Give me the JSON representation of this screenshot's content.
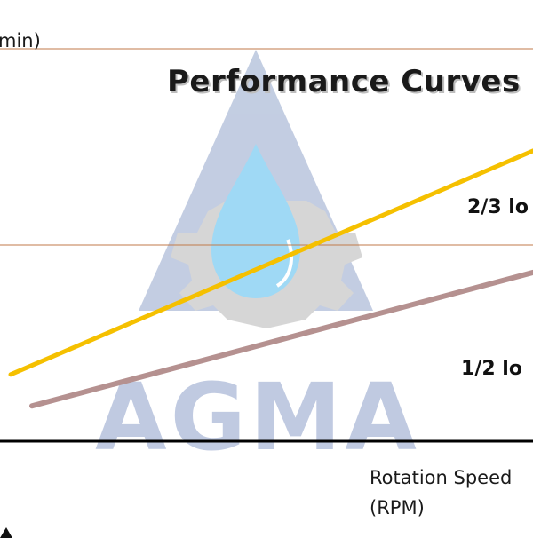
{
  "chart_data": {
    "type": "line",
    "title": "Performance Curves",
    "ylabel": "min)",
    "xlabel_lines": [
      "Rotation Speed",
      "(RPM)"
    ],
    "grid": true,
    "series": [
      {
        "name": "2/3 lo",
        "color": "#f5c000",
        "x": [
          0.02,
          1.0
        ],
        "y": [
          0.17,
          0.74
        ]
      },
      {
        "name": "1/2 lo",
        "color": "#b59190",
        "x": [
          0.06,
          1.0
        ],
        "y": [
          0.09,
          0.43
        ]
      }
    ],
    "gridlines": [
      0.5,
      1.0
    ],
    "xlim": [
      0,
      1
    ],
    "ylim": [
      0,
      1
    ]
  },
  "watermark": {
    "text": "AGMA",
    "colors": {
      "triangle": "#b9c5dd",
      "gear": "#cfcfcf",
      "drop": "#8fd3f4",
      "text": "#b6c1dc"
    }
  }
}
